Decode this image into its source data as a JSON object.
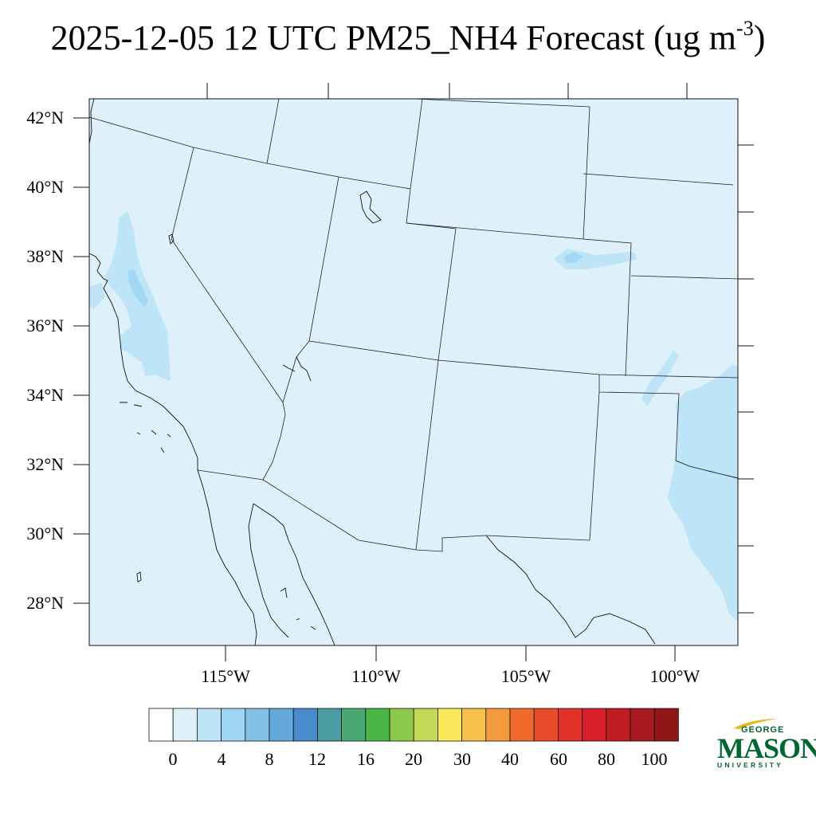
{
  "title": {
    "main": "2025-12-05 12 UTC PM25_NH4 Forecast (ug m",
    "exponent": "-3",
    "close": ")"
  },
  "map": {
    "lat_labels": [
      "42°N",
      "40°N",
      "38°N",
      "36°N",
      "34°N",
      "32°N",
      "30°N",
      "28°N"
    ],
    "lon_labels": [
      "115°W",
      "110°W",
      "105°W",
      "100°W"
    ],
    "background_color": "#def1fb",
    "region": "Southwestern United States and northern Mexico"
  },
  "colorbar": {
    "labels": [
      "0",
      "4",
      "8",
      "12",
      "16",
      "20",
      "30",
      "40",
      "60",
      "80",
      "100"
    ],
    "colors": [
      "#ffffff",
      "#def1fb",
      "#bde5f7",
      "#9fd6f3",
      "#82c0e8",
      "#65a8dc",
      "#4a8ccb",
      "#4a9ca0",
      "#4aa874",
      "#4ab444",
      "#8cc84a",
      "#c4d858",
      "#f8e85a",
      "#f8c04c",
      "#f49a3e",
      "#f06a2e",
      "#e84c2c",
      "#e03228",
      "#d81e28",
      "#c01c24",
      "#a81a22",
      "#901618"
    ]
  },
  "logo": {
    "top": "GEORGE",
    "middle": "MASON",
    "bottom": "UNIVERSITY"
  }
}
